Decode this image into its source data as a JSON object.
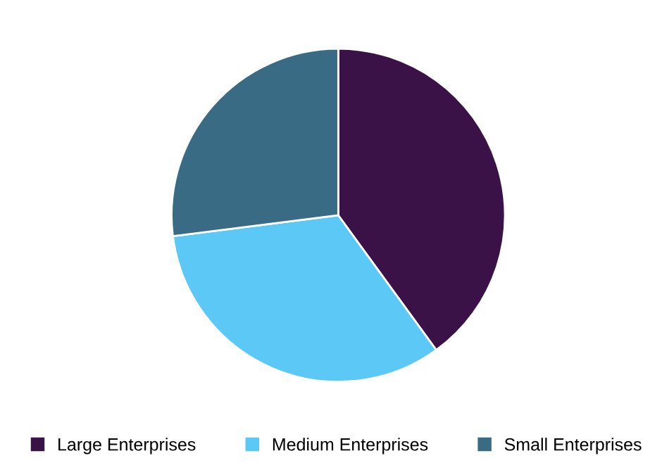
{
  "chart_data": {
    "type": "pie",
    "categories": [
      "Large Enterprises",
      "Medium Enterprises",
      "Small Enterprises"
    ],
    "values": [
      40,
      33,
      27
    ],
    "colors": [
      "#3a1248",
      "#5bc8f5",
      "#3a6b84"
    ],
    "legend": "bottom"
  }
}
